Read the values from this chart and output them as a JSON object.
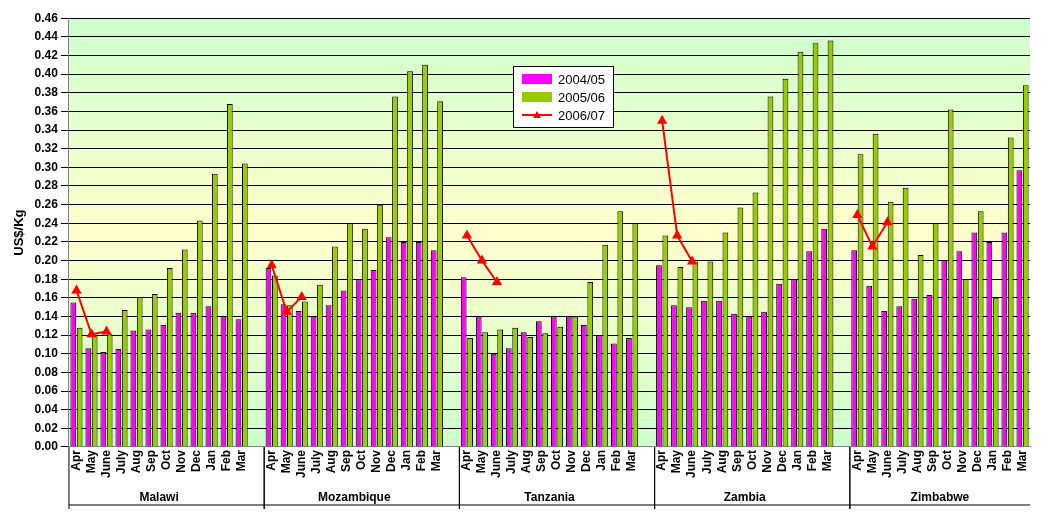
{
  "chart_data": {
    "type": "bar",
    "ylabel": "US$/Kg",
    "categories": [
      "Apr",
      "May",
      "June",
      "July",
      "Aug",
      "Sep",
      "Oct",
      "Nov",
      "Dec",
      "Jan",
      "Feb",
      "Mar",
      null,
      "Apr",
      "May",
      "June",
      "July",
      "Aug",
      "Sep",
      "Oct",
      "Nov",
      "Dec",
      "Jan",
      "Feb",
      "Mar",
      null,
      "Apr",
      "May",
      "June",
      "July",
      "Aug",
      "Sep",
      "Oct",
      "Nov",
      "Dec",
      "Jan",
      "Feb",
      "Mar",
      null,
      "Apr",
      "May",
      "June",
      "July",
      "Aug",
      "Sep",
      "Oct",
      "Nov",
      "Dec",
      "Jan",
      "Feb",
      "Mar",
      null,
      "Apr",
      "May",
      "June",
      "July",
      "Aug",
      "Sep",
      "Oct",
      "Nov",
      "Dec",
      "Jan",
      "Feb",
      "Mar"
    ],
    "annotations": [
      "Malawi",
      "Mozambique",
      "Tanzania",
      "Zambia",
      "Zimbabwe"
    ],
    "series": [
      {
        "name": "2004/05",
        "color": "#ff00ff",
        "values": [
          0.155,
          0.106,
          0.102,
          0.105,
          0.125,
          0.126,
          0.131,
          0.144,
          0.144,
          0.151,
          0.14,
          0.137,
          null,
          0.192,
          0.153,
          0.146,
          0.14,
          0.152,
          0.168,
          0.18,
          0.19,
          0.225,
          0.22,
          0.22,
          0.211,
          null,
          0.182,
          0.14,
          0.1,
          0.106,
          0.123,
          0.135,
          0.14,
          0.14,
          0.131,
          0.12,
          0.111,
          0.117,
          null,
          0.195,
          0.152,
          0.15,
          0.157,
          0.157,
          0.143,
          0.14,
          0.145,
          0.175,
          0.18,
          0.21,
          0.234,
          null,
          0.211,
          0.173,
          0.146,
          0.151,
          0.159,
          0.163,
          0.2,
          0.21,
          0.23,
          0.22,
          0.23,
          0.297
        ]
      },
      {
        "name": "2005/06",
        "color": "#99cc00",
        "values": [
          0.128,
          0.12,
          0.121,
          0.147,
          0.161,
          0.164,
          0.192,
          0.212,
          0.243,
          0.293,
          0.368,
          0.304,
          null,
          0.184,
          0.152,
          0.156,
          0.174,
          0.215,
          0.24,
          0.234,
          0.26,
          0.376,
          0.403,
          0.41,
          0.371,
          null,
          0.117,
          0.123,
          0.126,
          0.128,
          0.118,
          0.122,
          0.129,
          0.14,
          0.177,
          0.217,
          0.253,
          0.24,
          null,
          0.227,
          0.193,
          0.199,
          0.199,
          0.23,
          0.257,
          0.273,
          0.376,
          0.395,
          0.424,
          0.433,
          0.436,
          null,
          0.314,
          0.336,
          0.263,
          0.278,
          0.206,
          0.24,
          0.362,
          0.18,
          0.253,
          0.16,
          0.332,
          0.388
        ]
      },
      {
        "name": "2006/07",
        "type": "line",
        "color": "#ff0000",
        "marker": "triangle",
        "values": [
          0.168,
          0.121,
          0.124,
          null,
          null,
          null,
          null,
          null,
          null,
          null,
          null,
          null,
          null,
          0.195,
          0.145,
          0.161,
          null,
          null,
          null,
          null,
          null,
          null,
          null,
          null,
          null,
          null,
          0.227,
          0.2,
          0.177,
          null,
          null,
          null,
          null,
          null,
          null,
          null,
          null,
          null,
          null,
          0.35,
          0.227,
          0.199,
          null,
          null,
          null,
          null,
          null,
          null,
          null,
          null,
          null,
          null,
          0.249,
          0.215,
          0.241,
          null,
          null,
          null,
          null,
          null,
          null,
          null,
          null,
          null
        ]
      }
    ],
    "ylim": [
      0,
      0.46
    ],
    "yticks": [
      {
        "value": 0,
        "label": "0.00"
      },
      {
        "value": 0.02,
        "label": "0.02"
      },
      {
        "value": 0.04,
        "label": "0.04"
      },
      {
        "value": 0.06,
        "label": "0.06"
      },
      {
        "value": 0.08,
        "label": "0.08"
      },
      {
        "value": 0.1,
        "label": "0.10"
      },
      {
        "value": 0.12,
        "label": "0.12"
      },
      {
        "value": 0.14,
        "label": "0.14"
      },
      {
        "value": 0.16,
        "label": "0.16"
      },
      {
        "value": 0.18,
        "label": "0.18"
      },
      {
        "value": 0.2,
        "label": "0.20"
      },
      {
        "value": 0.22,
        "label": "0.22"
      },
      {
        "value": 0.24,
        "label": "0.24"
      },
      {
        "value": 0.26,
        "label": "0.26"
      },
      {
        "value": 0.28,
        "label": "0.28"
      },
      {
        "value": 0.3,
        "label": "0.30"
      },
      {
        "value": 0.32,
        "label": "0.32"
      },
      {
        "value": 0.34,
        "label": "0.34"
      },
      {
        "value": 0.36,
        "label": "0.36"
      },
      {
        "value": 0.38,
        "label": "0.38"
      },
      {
        "value": 0.4,
        "label": "0.40"
      },
      {
        "value": 0.42,
        "label": "0.42"
      },
      {
        "value": 0.44,
        "label": "0.44"
      },
      {
        "value": 0.46,
        "label": "0.46"
      }
    ],
    "grid": "y",
    "legend": "top"
  }
}
